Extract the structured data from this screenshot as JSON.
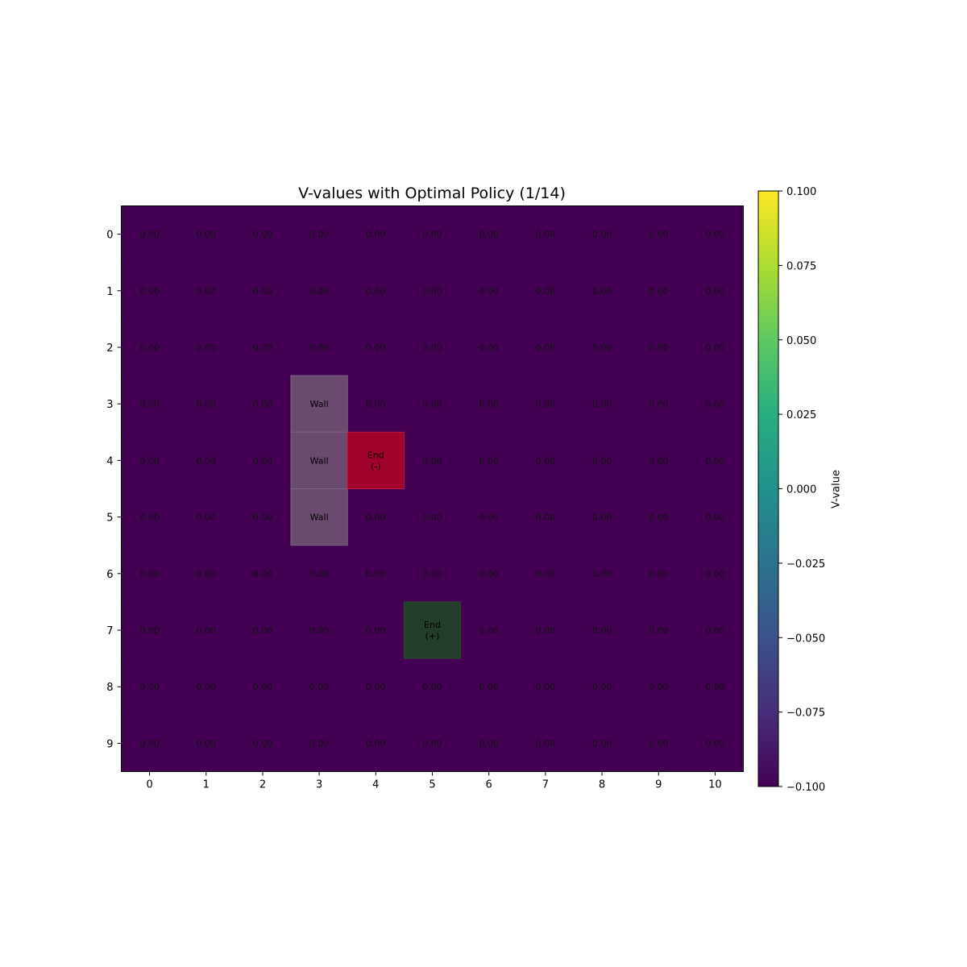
{
  "chart_data": {
    "type": "heatmap",
    "title": "V-values with Optimal Policy (1/14)",
    "rows": 10,
    "cols": 11,
    "x_ticks": [
      "0",
      "1",
      "2",
      "3",
      "4",
      "5",
      "6",
      "7",
      "8",
      "9",
      "10"
    ],
    "y_ticks": [
      "0",
      "1",
      "2",
      "3",
      "4",
      "5",
      "6",
      "7",
      "8",
      "9"
    ],
    "default_value": 0.0,
    "value_label": "0.00",
    "cmap": "viridis",
    "heatmap_color": "#440154",
    "special_cells": [
      {
        "row": 3,
        "col": 3,
        "kind": "wall",
        "lines": [
          "Wall"
        ],
        "color": "#6a4a6e"
      },
      {
        "row": 4,
        "col": 3,
        "kind": "wall",
        "lines": [
          "Wall"
        ],
        "color": "#6a4a6e"
      },
      {
        "row": 5,
        "col": 3,
        "kind": "wall",
        "lines": [
          "Wall"
        ],
        "color": "#6a4a6e"
      },
      {
        "row": 4,
        "col": 4,
        "kind": "end-negative",
        "lines": [
          "End",
          "(-)"
        ],
        "color": "#a1022b"
      },
      {
        "row": 7,
        "col": 5,
        "kind": "end-positive",
        "lines": [
          "End",
          "(+)"
        ],
        "color": "#233d2b"
      }
    ],
    "colorbar": {
      "label": "V-value",
      "vmin": -0.1,
      "vmax": 0.1,
      "ticks": [
        "0.100",
        "0.075",
        "0.050",
        "0.025",
        "0.000",
        "−0.025",
        "−0.050",
        "−0.075",
        "−0.100"
      ],
      "tick_values": [
        0.1,
        0.075,
        0.05,
        0.025,
        0.0,
        -0.025,
        -0.05,
        -0.075,
        -0.1
      ]
    }
  }
}
